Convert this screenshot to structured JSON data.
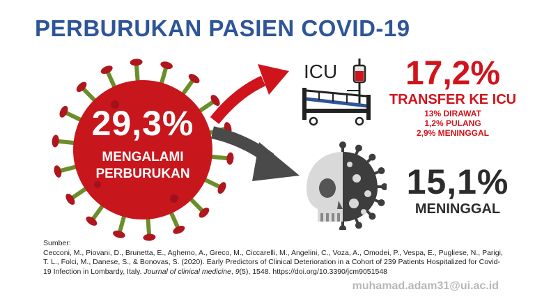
{
  "title": "PERBURUKAN PASIEN COVID-19",
  "virus": {
    "percent": "29,3%",
    "label_line1": "MENGALAMI",
    "label_line2": "PERBURUKAN",
    "color": "#c8161d"
  },
  "icu": {
    "icon_text": "ICU",
    "percent": "17,2%",
    "label": "TRANSFER KE ICU",
    "details": [
      "13% DIRAWAT",
      "1,2% PULANG",
      "2,9% MENINGGAL"
    ],
    "color": "#d0141c"
  },
  "death": {
    "percent": "15,1%",
    "label": "MENINGGAL",
    "color": "#2b2b2b"
  },
  "source": {
    "heading": "Sumber:",
    "text_before": "Cecconi, M., Piovani, D., Brunetta, E., Aghemo, A., Greco, M., Ciccarelli, M., Angelini, C., Voza, A., Omodei, P., Vespa, E., Pugliese, N., Parigi, T. L., Folci, M., Danese, S., & Bonovas, S. (2020). Early Predictors of Clinical Deterioration in a Cohort of 239 Patients Hospitalized for Covid-19 Infection in Lombardy, Italy. ",
    "journal": "Journal of clinical medicine",
    "sep": ", ",
    "volume": "9",
    "text_after": "(5), 1548. https://doi.org/10.3390/jcm9051548"
  },
  "email": "muhamad.adam31@ui.ac.id",
  "icons": {
    "virus": "coronavirus-icon",
    "bed": "hospital-bed-icon",
    "skull": "skull-virus-icon",
    "arrow_up": "red-arrow-icon",
    "arrow_down": "grey-arrow-icon"
  }
}
